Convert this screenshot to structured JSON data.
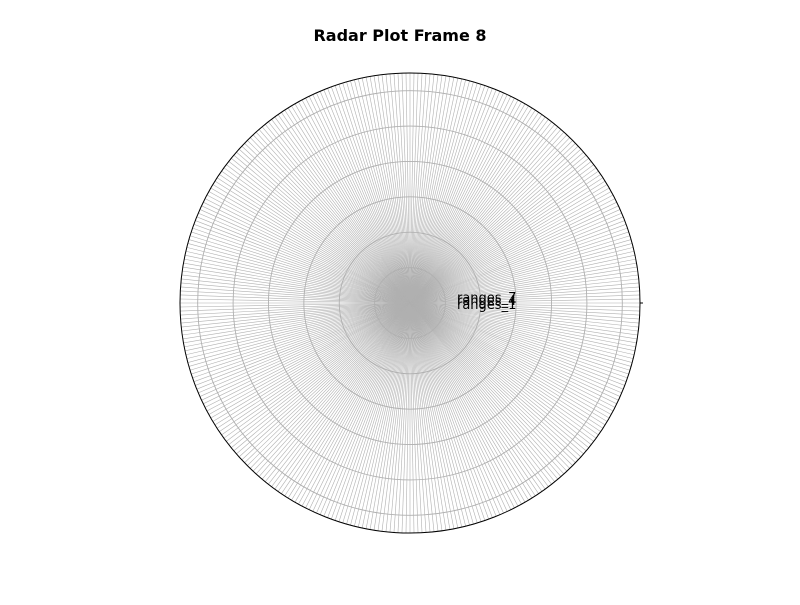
{
  "chart_data": {
    "type": "radar",
    "title": "Radar Plot Frame 8",
    "r_range": [
      0,
      1
    ],
    "grid": true,
    "radial_gridlines": 6,
    "spoke_count": 360,
    "series": [
      {
        "name": "ranges_1"
      },
      {
        "name": "ranges_4"
      },
      {
        "name": "ranges_7"
      }
    ],
    "colors": {
      "grid": "#b0b0b0",
      "frame": "#000000",
      "text": "#000000"
    }
  }
}
